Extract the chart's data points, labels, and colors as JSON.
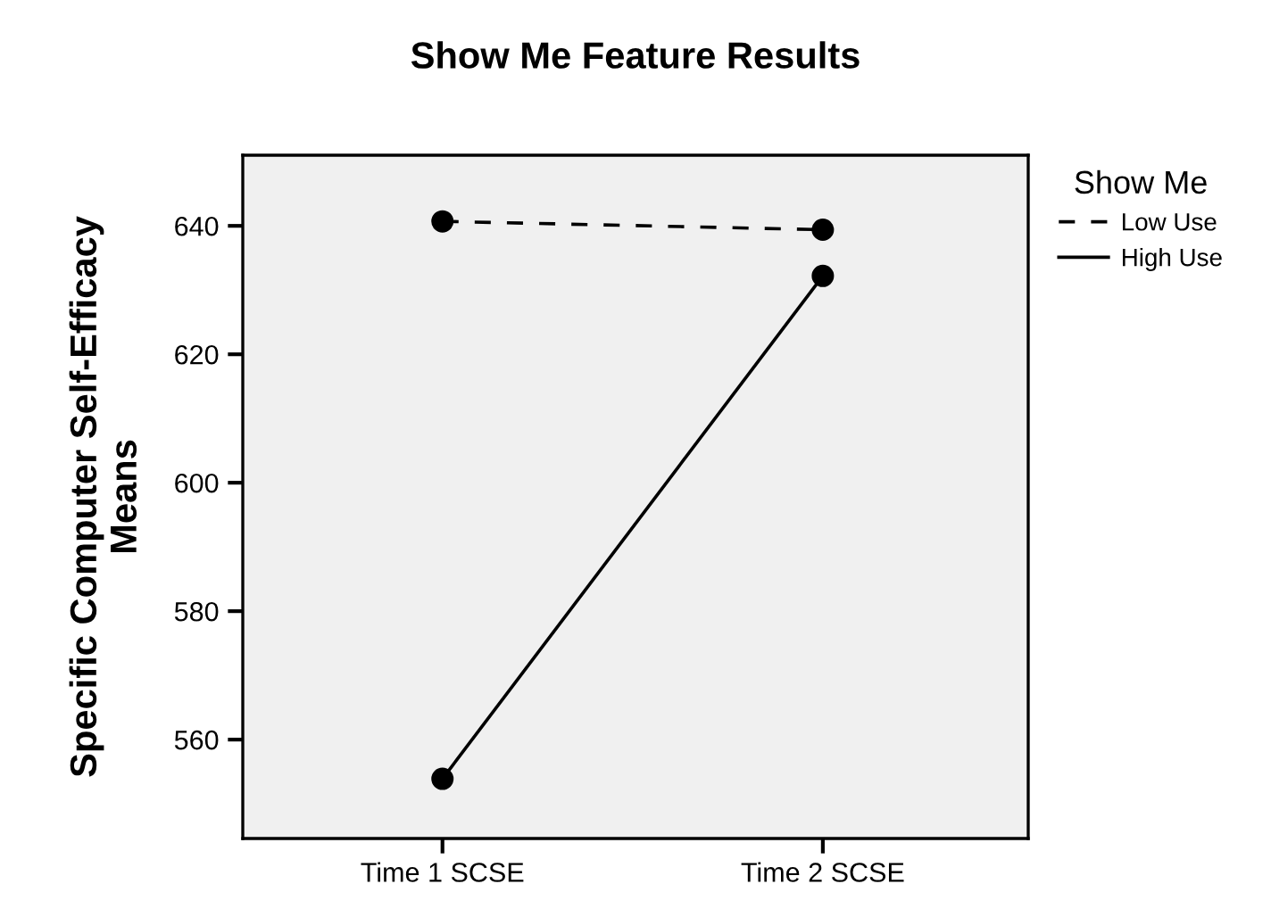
{
  "chart_data": {
    "type": "line",
    "title": "Show Me Feature Results",
    "ylabel": "Specific Computer Self-Efficacy\nMeans",
    "legend_title": "Show Me",
    "categories": [
      "Time 1 SCSE",
      "Time 2 SCSE"
    ],
    "series": [
      {
        "name": "Low Use",
        "color": "#000000",
        "values": [
          640.7,
          639.4
        ],
        "line_style": "dashed"
      },
      {
        "name": "High Use",
        "color": "#000000",
        "values": [
          553.9,
          632.2
        ],
        "line_style": "solid"
      }
    ],
    "ylim": [
      544.6,
      651
    ],
    "yticks": [
      560,
      580,
      600,
      620,
      640
    ],
    "marker": "circle",
    "grid": false,
    "legend": "top right"
  }
}
